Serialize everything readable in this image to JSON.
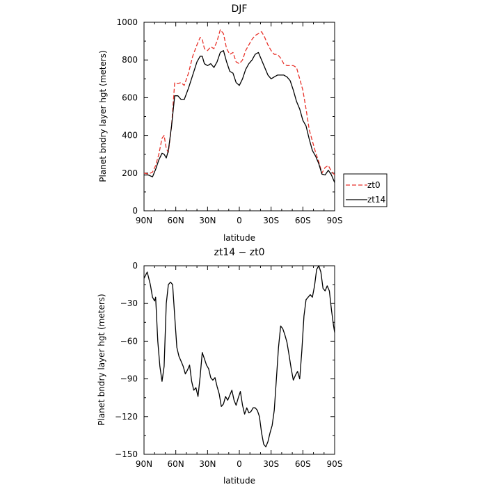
{
  "chart_data": [
    {
      "type": "line",
      "title": "DJF",
      "xlabel": "latitude",
      "ylabel": "Planet bndry layer hgt (meters)",
      "xlim": [
        90,
        -90
      ],
      "ylim": [
        0,
        1000
      ],
      "xticks": [
        90,
        60,
        30,
        0,
        -30,
        -60,
        -90
      ],
      "xtick_labels": [
        "90N",
        "60N",
        "30N",
        "0",
        "30S",
        "60S",
        "90S"
      ],
      "yticks": [
        0,
        200,
        400,
        600,
        800,
        1000
      ],
      "ytick_labels": [
        "0",
        "200",
        "400",
        "600",
        "800",
        "1000"
      ],
      "grid": false,
      "legend": "outside-right",
      "series": [
        {
          "name": "zt0",
          "color": "#e8322a",
          "dash": "dashed",
          "x": [
            90,
            86,
            82,
            79,
            76,
            73,
            71,
            69,
            67,
            64,
            61,
            58,
            55,
            52,
            48,
            44,
            40,
            37,
            35,
            33,
            30,
            27,
            24,
            21,
            18,
            15,
            12,
            9,
            6,
            3,
            0,
            -3,
            -6,
            -9,
            -12,
            -15,
            -18,
            -21,
            -24,
            -27,
            -30,
            -33,
            -36,
            -39,
            -42,
            -45,
            -48,
            -51,
            -54,
            -57,
            -60,
            -63,
            -66,
            -69,
            -72,
            -75,
            -78,
            -81,
            -84,
            -87,
            -90
          ],
          "values": [
            200,
            195,
            205,
            240,
            300,
            385,
            400,
            330,
            310,
            450,
            680,
            675,
            680,
            665,
            730,
            820,
            880,
            920,
            910,
            860,
            850,
            870,
            860,
            900,
            960,
            940,
            860,
            830,
            840,
            790,
            780,
            800,
            850,
            880,
            910,
            930,
            940,
            950,
            920,
            880,
            850,
            830,
            830,
            810,
            780,
            770,
            770,
            770,
            760,
            700,
            640,
            540,
            430,
            370,
            310,
            260,
            200,
            230,
            240,
            210,
            190
          ]
        },
        {
          "name": "zt14",
          "color": "#000000",
          "dash": "solid",
          "x": [
            90,
            86,
            82,
            79,
            76,
            73,
            71,
            69,
            67,
            64,
            61,
            58,
            55,
            52,
            48,
            44,
            40,
            37,
            35,
            33,
            30,
            27,
            24,
            21,
            18,
            15,
            12,
            9,
            6,
            3,
            0,
            -3,
            -6,
            -9,
            -12,
            -15,
            -18,
            -21,
            -24,
            -27,
            -30,
            -33,
            -36,
            -39,
            -42,
            -45,
            -48,
            -51,
            -54,
            -57,
            -60,
            -63,
            -66,
            -69,
            -72,
            -75,
            -78,
            -81,
            -84,
            -87,
            -90
          ],
          "values": [
            190,
            190,
            180,
            220,
            270,
            305,
            300,
            280,
            320,
            450,
            610,
            610,
            590,
            590,
            650,
            720,
            790,
            820,
            820,
            780,
            770,
            780,
            760,
            790,
            840,
            850,
            790,
            740,
            730,
            680,
            665,
            700,
            750,
            780,
            800,
            830,
            840,
            800,
            760,
            720,
            700,
            710,
            720,
            720,
            720,
            710,
            690,
            640,
            580,
            540,
            480,
            450,
            380,
            320,
            290,
            250,
            195,
            190,
            215,
            190,
            150
          ]
        }
      ]
    },
    {
      "type": "line",
      "title": "zt14 − zt0",
      "xlabel": "latitude",
      "ylabel": "Planet bndry layer hgt (meters)",
      "xlim": [
        90,
        -90
      ],
      "ylim": [
        -150,
        0
      ],
      "xticks": [
        90,
        60,
        30,
        0,
        -30,
        -60,
        -90
      ],
      "xtick_labels": [
        "90N",
        "60N",
        "30N",
        "0",
        "30S",
        "60S",
        "90S"
      ],
      "yticks": [
        0,
        -30,
        -60,
        -90,
        -120,
        -150
      ],
      "ytick_labels": [
        "0",
        "−30",
        "−60",
        "−90",
        "−120",
        "−150"
      ],
      "grid": false,
      "series": [
        {
          "color": "#000000",
          "dash": "solid",
          "x": [
            90,
            87,
            84,
            82,
            80,
            79,
            77,
            75,
            73,
            71,
            69,
            67,
            65,
            63,
            61,
            59,
            57,
            55,
            53,
            51,
            49,
            47,
            45,
            43,
            41,
            39,
            37,
            35,
            33,
            31,
            29,
            27,
            25,
            23,
            21,
            19,
            17,
            15,
            13,
            11,
            9,
            7,
            5,
            3,
            1,
            -1,
            -3,
            -5,
            -7,
            -9,
            -11,
            -13,
            -15,
            -17,
            -19,
            -21,
            -23,
            -25,
            -27,
            -29,
            -31,
            -33,
            -35,
            -37,
            -39,
            -41,
            -43,
            -45,
            -47,
            -49,
            -51,
            -53,
            -55,
            -57,
            -59,
            -61,
            -63,
            -65,
            -67,
            -69,
            -71,
            -73,
            -75,
            -77,
            -79,
            -81,
            -83,
            -85,
            -87,
            -89,
            -90
          ],
          "values": [
            -10,
            -5,
            -15,
            -25,
            -28,
            -25,
            -60,
            -80,
            -92,
            -80,
            -30,
            -15,
            -13,
            -15,
            -40,
            -65,
            -72,
            -76,
            -80,
            -86,
            -83,
            -79,
            -92,
            -99,
            -97,
            -104,
            -88,
            -69,
            -74,
            -79,
            -82,
            -89,
            -91,
            -89,
            -96,
            -102,
            -112,
            -110,
            -104,
            -107,
            -103,
            -99,
            -107,
            -111,
            -105,
            -100,
            -111,
            -118,
            -113,
            -117,
            -116,
            -113,
            -113,
            -115,
            -120,
            -133,
            -142,
            -144,
            -140,
            -133,
            -127,
            -115,
            -90,
            -65,
            -48,
            -50,
            -55,
            -61,
            -71,
            -82,
            -91,
            -87,
            -84,
            -90,
            -68,
            -40,
            -27,
            -25,
            -23,
            -25,
            -16,
            -3,
            0,
            -5,
            -18,
            -20,
            -16,
            -20,
            -35,
            -48,
            -53
          ]
        }
      ]
    }
  ]
}
